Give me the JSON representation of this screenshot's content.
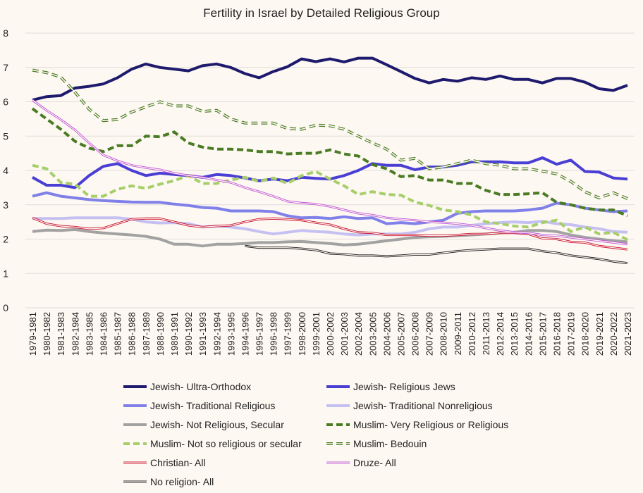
{
  "chart_data": {
    "type": "line",
    "title": "Fertility in Israel by Detailed Religious Group",
    "xlabel": "",
    "ylabel": "",
    "ylim": [
      0,
      8
    ],
    "yticks": [
      0,
      1,
      2,
      3,
      4,
      5,
      6,
      7,
      8
    ],
    "grid": true,
    "legend_position": "bottom",
    "categories": [
      "1979-1981",
      "1980-1982",
      "1981-1983",
      "1982-1984",
      "1983-1985",
      "1984-1986",
      "1985-1987",
      "1986-1988",
      "1987-1989",
      "1988-1990",
      "1989-1991",
      "1990-1992",
      "1991-1993",
      "1992-1994",
      "1993-1995",
      "1994-1996",
      "1995-1997",
      "1996-1998",
      "1997-1999",
      "1998-2000",
      "1999-2001",
      "2000-2002",
      "2001-2003",
      "2002-2004",
      "2003-2005",
      "2004-2006",
      "2005-2007",
      "2006-2008",
      "2007-2009",
      "2008-2010",
      "2009-2011",
      "2010-2012",
      "2011-2013",
      "2012-2014",
      "2013-2015",
      "2014-2016",
      "2015-2017",
      "2016-2018",
      "2017-2019",
      "2018-2020",
      "2019-2021",
      "2020-2022",
      "2021-2023"
    ],
    "series": [
      {
        "name": "Jewish- Ultra-Orthodox",
        "color": "#1e1a6e",
        "style": "solid",
        "width": 4,
        "values": [
          6.05,
          6.15,
          6.18,
          6.4,
          6.45,
          6.52,
          6.7,
          6.95,
          7.1,
          7.0,
          6.95,
          6.9,
          7.05,
          7.1,
          7.0,
          6.82,
          6.7,
          6.88,
          7.02,
          7.25,
          7.17,
          7.25,
          7.16,
          7.27,
          7.27,
          7.08,
          6.88,
          6.68,
          6.55,
          6.65,
          6.6,
          6.7,
          6.65,
          6.75,
          6.65,
          6.65,
          6.55,
          6.68,
          6.68,
          6.57,
          6.38,
          6.33,
          6.48
        ]
      },
      {
        "name": "Jewish- Religious Jews",
        "color": "#4a3fd4",
        "style": "solid",
        "width": 4,
        "values": [
          3.8,
          3.57,
          3.57,
          3.5,
          3.85,
          4.12,
          4.2,
          4.0,
          3.85,
          3.92,
          3.88,
          3.85,
          3.8,
          3.88,
          3.85,
          3.78,
          3.7,
          3.75,
          3.7,
          3.8,
          3.77,
          3.75,
          3.85,
          4.0,
          4.2,
          4.15,
          4.15,
          4.02,
          4.1,
          4.1,
          4.15,
          4.25,
          4.25,
          4.25,
          4.22,
          4.22,
          4.37,
          4.18,
          4.3,
          3.97,
          3.95,
          3.78,
          3.75
        ]
      },
      {
        "name": "Jewish- Traditional Religious",
        "color": "#7f80e8",
        "style": "solid",
        "width": 4,
        "values": [
          3.25,
          3.35,
          3.25,
          3.2,
          3.15,
          3.12,
          3.1,
          3.08,
          3.07,
          3.07,
          3.02,
          2.98,
          2.92,
          2.9,
          2.82,
          2.82,
          2.82,
          2.8,
          2.68,
          2.62,
          2.63,
          2.6,
          2.65,
          2.6,
          2.62,
          2.45,
          2.48,
          2.45,
          2.5,
          2.55,
          2.75,
          2.8,
          2.82,
          2.82,
          2.82,
          2.85,
          2.9,
          3.05,
          3.0,
          2.9,
          2.85,
          2.8,
          2.82
        ]
      },
      {
        "name": "Jewish- Traditional Nonreligious",
        "color": "#c5c0f2",
        "style": "solid",
        "width": 4,
        "values": [
          2.6,
          2.6,
          2.6,
          2.62,
          2.62,
          2.62,
          2.62,
          2.58,
          2.5,
          2.47,
          2.48,
          2.45,
          2.35,
          2.38,
          2.35,
          2.3,
          2.22,
          2.15,
          2.2,
          2.25,
          2.22,
          2.2,
          2.15,
          2.12,
          2.15,
          2.15,
          2.15,
          2.2,
          2.3,
          2.35,
          2.35,
          2.4,
          2.45,
          2.48,
          2.5,
          2.48,
          2.52,
          2.45,
          2.42,
          2.35,
          2.3,
          2.22,
          2.2
        ]
      },
      {
        "name": "Jewish- Not Religious, Secular",
        "color": "#a2a2a2",
        "style": "solid",
        "width": 4,
        "values": [
          2.22,
          2.26,
          2.25,
          2.28,
          2.22,
          2.18,
          2.15,
          2.12,
          2.08,
          2.0,
          1.85,
          1.85,
          1.8,
          1.85,
          1.85,
          1.87,
          1.9,
          1.9,
          1.92,
          1.93,
          1.9,
          1.87,
          1.83,
          1.85,
          1.9,
          1.95,
          2.0,
          2.05,
          2.07,
          2.08,
          2.1,
          2.12,
          2.15,
          2.18,
          2.2,
          2.25,
          2.25,
          2.22,
          2.12,
          2.05,
          2.0,
          1.95,
          1.92
        ]
      },
      {
        "name": "Muslim- Very Religious or Religious",
        "color": "#4a7c23",
        "style": "dashed",
        "width": 4,
        "values": [
          5.8,
          5.5,
          5.2,
          4.85,
          4.65,
          4.55,
          4.72,
          4.72,
          5.0,
          4.98,
          5.12,
          4.8,
          4.68,
          4.62,
          4.62,
          4.6,
          4.55,
          4.55,
          4.48,
          4.5,
          4.5,
          4.6,
          4.48,
          4.42,
          4.17,
          4.05,
          3.82,
          3.85,
          3.72,
          3.72,
          3.62,
          3.62,
          3.42,
          3.3,
          3.3,
          3.32,
          3.35,
          3.07,
          3.0,
          2.9,
          2.85,
          2.85,
          2.68
        ]
      },
      {
        "name": "Muslim- Not so religious or secular",
        "color": "#a6cf6a",
        "style": "dashed",
        "width": 4,
        "values": [
          4.15,
          4.05,
          3.65,
          3.6,
          3.25,
          3.25,
          3.45,
          3.55,
          3.48,
          3.6,
          3.7,
          3.85,
          3.62,
          3.62,
          3.72,
          3.8,
          3.68,
          3.78,
          3.62,
          3.85,
          3.97,
          3.75,
          3.55,
          3.3,
          3.38,
          3.3,
          3.28,
          3.08,
          2.98,
          2.85,
          2.8,
          2.7,
          2.5,
          2.45,
          2.38,
          2.35,
          2.48,
          2.55,
          2.22,
          2.35,
          2.15,
          2.2,
          1.98
        ]
      },
      {
        "name": "Muslim- Bedouin",
        "color": "#4a7c23",
        "style": "double-dashed",
        "width": 4,
        "values": [
          6.92,
          6.85,
          6.72,
          6.28,
          5.78,
          5.45,
          5.48,
          5.7,
          5.85,
          6.0,
          5.88,
          5.88,
          5.72,
          5.75,
          5.5,
          5.38,
          5.38,
          5.38,
          5.22,
          5.2,
          5.32,
          5.3,
          5.2,
          5.0,
          4.8,
          4.62,
          4.3,
          4.35,
          4.05,
          4.1,
          4.2,
          4.3,
          4.2,
          4.15,
          4.05,
          4.05,
          3.98,
          3.9,
          3.68,
          3.38,
          3.2,
          3.35,
          3.18
        ]
      },
      {
        "name": "Christian- All",
        "color": "#c8102e",
        "style": "double",
        "width": 3,
        "values": [
          2.62,
          2.45,
          2.38,
          2.35,
          2.3,
          2.32,
          2.45,
          2.58,
          2.6,
          2.6,
          2.5,
          2.4,
          2.35,
          2.38,
          2.4,
          2.5,
          2.58,
          2.6,
          2.58,
          2.55,
          2.48,
          2.42,
          2.3,
          2.2,
          2.18,
          2.12,
          2.12,
          2.12,
          2.1,
          2.1,
          2.12,
          2.15,
          2.15,
          2.18,
          2.18,
          2.15,
          2.02,
          2.0,
          1.92,
          1.9,
          1.8,
          1.75,
          1.7
        ]
      },
      {
        "name": "Druze- All",
        "color": "#bf55d6",
        "style": "double",
        "width": 3,
        "values": [
          6.05,
          5.75,
          5.48,
          5.18,
          4.8,
          4.45,
          4.28,
          4.15,
          4.08,
          4.02,
          3.92,
          3.85,
          3.8,
          3.72,
          3.65,
          3.5,
          3.38,
          3.25,
          3.1,
          3.05,
          3.02,
          2.95,
          2.85,
          2.75,
          2.7,
          2.62,
          2.58,
          2.55,
          2.5,
          2.48,
          2.45,
          2.4,
          2.32,
          2.25,
          2.2,
          2.18,
          2.12,
          2.1,
          2.05,
          2.0,
          1.95,
          1.9,
          1.85
        ]
      },
      {
        "name": "No religion- All",
        "color": "#1a1a1a",
        "style": "double",
        "width": 3,
        "values": [
          null,
          null,
          null,
          null,
          null,
          null,
          null,
          null,
          null,
          null,
          null,
          null,
          null,
          null,
          null,
          1.8,
          1.75,
          1.75,
          1.75,
          1.72,
          1.68,
          1.58,
          1.56,
          1.52,
          1.52,
          1.5,
          1.52,
          1.55,
          1.55,
          1.6,
          1.65,
          1.68,
          1.7,
          1.72,
          1.72,
          1.72,
          1.65,
          1.6,
          1.52,
          1.47,
          1.42,
          1.35,
          1.3
        ]
      }
    ]
  }
}
